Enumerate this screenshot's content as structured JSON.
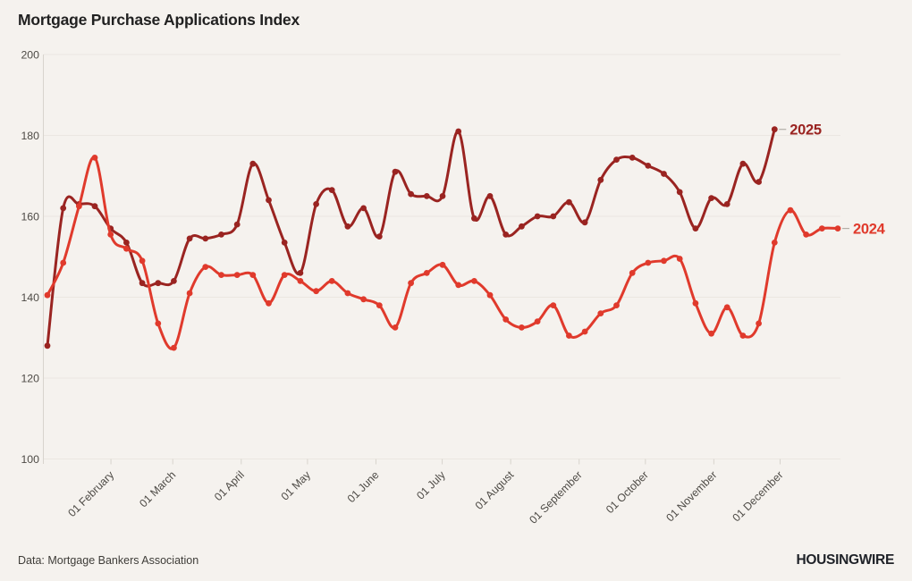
{
  "title": "Mortgage Purchase Applications Index",
  "source": "Data: Mortgage Bankers Association",
  "logo": "HOUSINGWIRE",
  "colors": {
    "background": "#f5f2ee",
    "grid": "#ebe7e1",
    "axis_line": "#d8d4cd",
    "axis_text": "#4d4a45",
    "title_text": "#212121",
    "logo_text": "#1f2228",
    "label_dash": "#b3afa8"
  },
  "chart_data": {
    "type": "line",
    "title": "Mortgage Purchase Applications Index",
    "xlabel": "",
    "ylabel": "",
    "ylim": [
      100,
      200
    ],
    "y_ticks": [
      100,
      120,
      140,
      160,
      180,
      200
    ],
    "x_ticks": [
      "01 February",
      "01 March",
      "01 April",
      "01 May",
      "01 June",
      "01 July",
      "01 August",
      "01 September",
      "01 October",
      "01 November",
      "01 December"
    ],
    "grid": "horizontal",
    "legend_position": "end-of-line",
    "x_frequency": "weekly",
    "series": [
      {
        "name": "2025",
        "color": "#9a2421",
        "values": [
          128,
          162,
          163,
          162.5,
          157,
          153.5,
          143.5,
          143.5,
          144,
          154.5,
          154.5,
          155.5,
          158,
          173,
          164,
          153.5,
          146,
          163,
          166.5,
          157.5,
          162,
          155,
          171,
          165.5,
          165,
          165,
          181,
          159.5,
          165,
          155.5,
          157.5,
          160,
          160,
          163.5,
          158.5,
          169,
          174,
          174.5,
          172.5,
          170.5,
          166,
          157,
          164.5,
          163,
          173,
          168.5,
          181.5
        ]
      },
      {
        "name": "2024",
        "color": "#e03a2c",
        "values": [
          140.5,
          148.5,
          162.5,
          174.5,
          155.5,
          152,
          149,
          133.5,
          127.5,
          141,
          147.5,
          145.5,
          145.5,
          145.5,
          138.5,
          145.5,
          144,
          141.5,
          144,
          141,
          139.5,
          138,
          132.5,
          143.5,
          146,
          148,
          143,
          144,
          140.5,
          134.5,
          132.5,
          134,
          138,
          130.5,
          131.5,
          136,
          138,
          146,
          148.5,
          149,
          149.5,
          138.5,
          131,
          137.5,
          130.5,
          133.5,
          153.5,
          161.5,
          155.5,
          157,
          157
        ]
      }
    ]
  }
}
